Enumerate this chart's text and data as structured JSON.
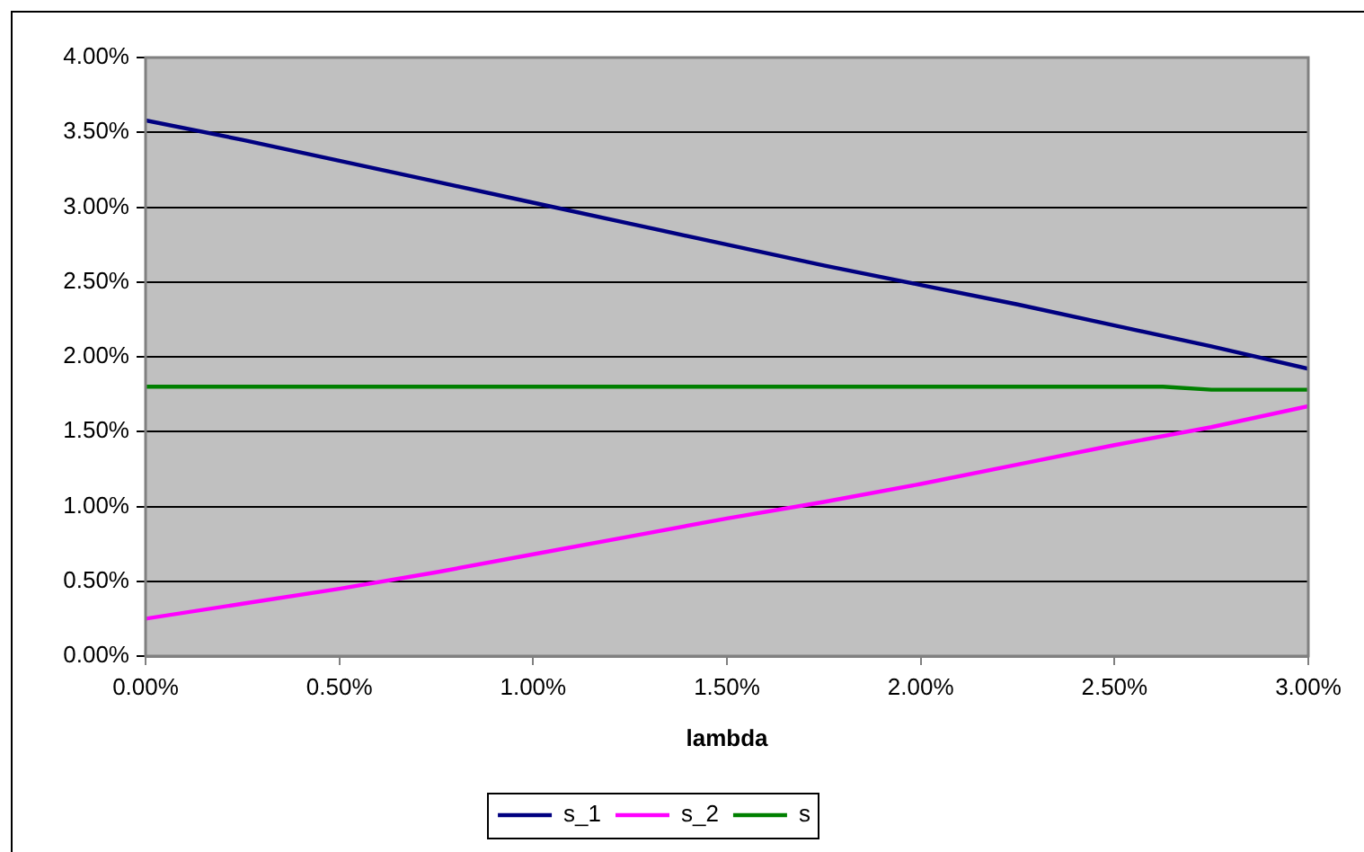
{
  "chart_data": {
    "type": "line",
    "xlabel": "lambda",
    "x": [
      0,
      0.25,
      0.5,
      0.75,
      1,
      1.25,
      1.5,
      1.75,
      2,
      2.25,
      2.5,
      2.75,
      3
    ],
    "series": [
      {
        "name": "s_1",
        "color": "#000080",
        "values": [
          3.58,
          3.45,
          3.31,
          3.17,
          3.03,
          2.89,
          2.75,
          2.61,
          2.48,
          2.35,
          2.21,
          2.07,
          1.92
        ]
      },
      {
        "name": "s_2",
        "color": "#ff00ff",
        "values": [
          0.25,
          0.35,
          0.45,
          0.56,
          0.68,
          0.8,
          0.92,
          1.03,
          1.15,
          1.28,
          1.41,
          1.53,
          1.67
        ]
      },
      {
        "name": "s",
        "color": "#008000",
        "x": [
          0,
          0.25,
          0.5,
          0.75,
          1,
          1.25,
          1.5,
          1.75,
          2,
          2.25,
          2.5,
          2.625,
          2.75,
          3
        ],
        "values": [
          1.8,
          1.8,
          1.8,
          1.8,
          1.8,
          1.8,
          1.8,
          1.8,
          1.8,
          1.8,
          1.8,
          1.8,
          1.78,
          1.78
        ]
      }
    ],
    "xlim": [
      0,
      3
    ],
    "ylim": [
      0,
      4
    ],
    "xticks": [
      {
        "value": 0,
        "label": "0.00%"
      },
      {
        "value": 0.5,
        "label": "0.50%"
      },
      {
        "value": 1,
        "label": "1.00%"
      },
      {
        "value": 1.5,
        "label": "1.50%"
      },
      {
        "value": 2,
        "label": "2.00%"
      },
      {
        "value": 2.5,
        "label": "2.50%"
      },
      {
        "value": 3,
        "label": "3.00%"
      }
    ],
    "yticks": [
      {
        "value": 0,
        "label": "0.00%"
      },
      {
        "value": 0.5,
        "label": "0.50%"
      },
      {
        "value": 1,
        "label": "1.00%"
      },
      {
        "value": 1.5,
        "label": "1.50%"
      },
      {
        "value": 2,
        "label": "2.00%"
      },
      {
        "value": 2.5,
        "label": "2.50%"
      },
      {
        "value": 3,
        "label": "3.00%"
      },
      {
        "value": 3.5,
        "label": "3.50%"
      },
      {
        "value": 4,
        "label": "4.00%"
      }
    ],
    "grid": "y",
    "legend": "bottom",
    "marker": "none",
    "line_style": "solid"
  }
}
